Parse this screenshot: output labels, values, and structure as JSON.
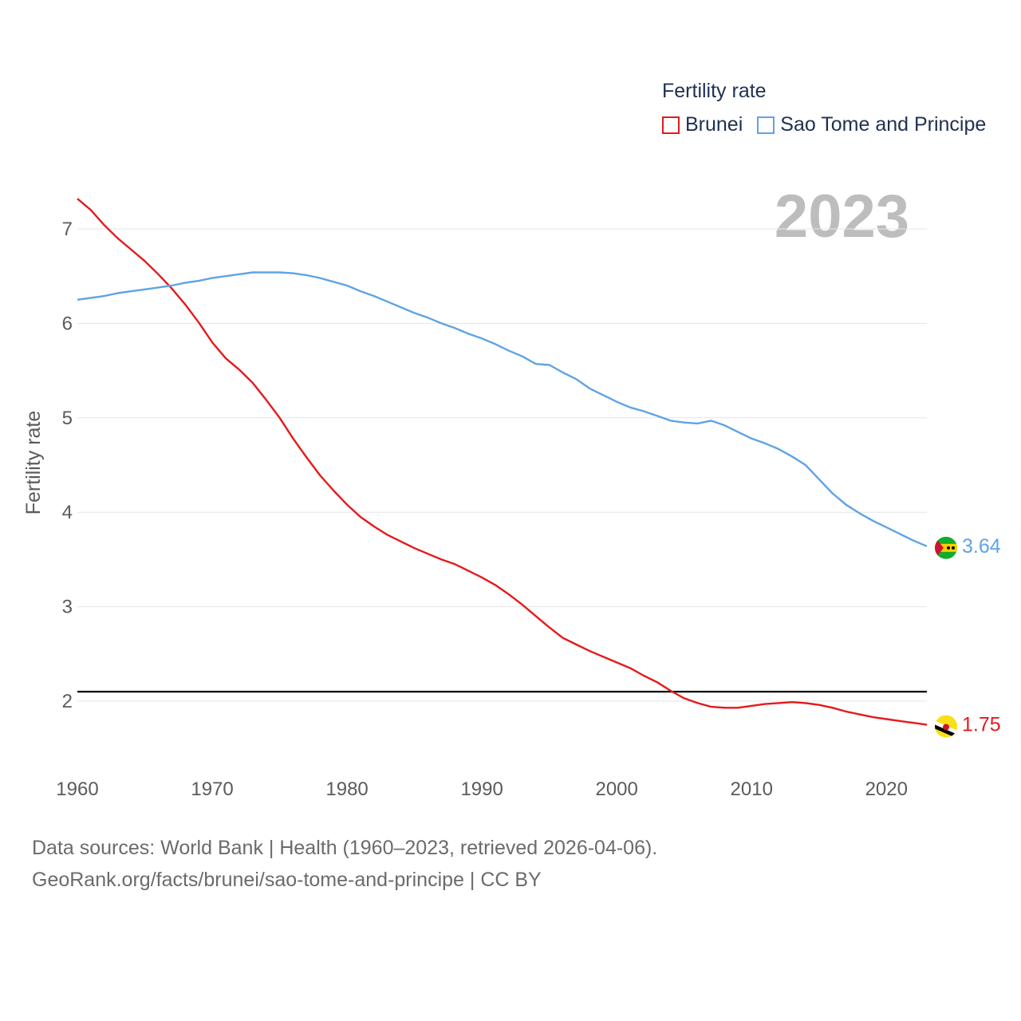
{
  "legend": {
    "title": "Fertility rate",
    "items": [
      {
        "label": "Brunei",
        "color": "#e41a1c"
      },
      {
        "label": "Sao Tome and Principe",
        "color": "#5fa3e6"
      }
    ]
  },
  "year_label": "2023",
  "source": {
    "line1": "Data sources: World Bank | Health (1960–2023, retrieved 2026-04-06).",
    "line2": "GeoRank.org/facts/brunei/sao-tome-and-principe | CC BY"
  },
  "chart_data": {
    "type": "line",
    "title": "Fertility rate",
    "xlabel": "",
    "ylabel": "Fertility rate",
    "xlim": [
      1960,
      2023
    ],
    "ylim": [
      1.3,
      7.35
    ],
    "xticks": [
      1960,
      1970,
      1980,
      1990,
      2000,
      2010,
      2020
    ],
    "yticks": [
      2,
      3,
      4,
      5,
      6,
      7
    ],
    "reference_line": 2.1,
    "grid": true,
    "x": [
      1960,
      1961,
      1962,
      1963,
      1964,
      1965,
      1966,
      1967,
      1968,
      1969,
      1970,
      1971,
      1972,
      1973,
      1974,
      1975,
      1976,
      1977,
      1978,
      1979,
      1980,
      1981,
      1982,
      1983,
      1984,
      1985,
      1986,
      1987,
      1988,
      1989,
      1990,
      1991,
      1992,
      1993,
      1994,
      1995,
      1996,
      1997,
      1998,
      1999,
      2000,
      2001,
      2002,
      2003,
      2004,
      2005,
      2006,
      2007,
      2008,
      2009,
      2010,
      2011,
      2012,
      2013,
      2014,
      2015,
      2016,
      2017,
      2018,
      2019,
      2020,
      2021,
      2022,
      2023
    ],
    "series": [
      {
        "name": "Brunei",
        "color": "#e41a1c",
        "end_label": "1.75",
        "flag": "brunei-flag",
        "values": [
          7.32,
          7.2,
          7.04,
          6.9,
          6.78,
          6.66,
          6.52,
          6.37,
          6.2,
          6.01,
          5.8,
          5.63,
          5.51,
          5.37,
          5.19,
          5.0,
          4.78,
          4.58,
          4.39,
          4.23,
          4.08,
          3.95,
          3.85,
          3.76,
          3.69,
          3.62,
          3.56,
          3.5,
          3.45,
          3.38,
          3.31,
          3.23,
          3.13,
          3.02,
          2.9,
          2.78,
          2.67,
          2.6,
          2.53,
          2.47,
          2.41,
          2.35,
          2.27,
          2.2,
          2.11,
          2.03,
          1.98,
          1.94,
          1.93,
          1.93,
          1.95,
          1.97,
          1.98,
          1.99,
          1.98,
          1.96,
          1.93,
          1.89,
          1.86,
          1.83,
          1.81,
          1.79,
          1.77,
          1.75
        ]
      },
      {
        "name": "Sao Tome and Principe",
        "color": "#5fa3e6",
        "end_label": "3.64",
        "flag": "sao-tome-flag",
        "values": [
          6.25,
          6.27,
          6.29,
          6.32,
          6.34,
          6.36,
          6.38,
          6.4,
          6.43,
          6.45,
          6.48,
          6.5,
          6.52,
          6.54,
          6.54,
          6.54,
          6.53,
          6.51,
          6.48,
          6.44,
          6.4,
          6.34,
          6.29,
          6.23,
          6.17,
          6.11,
          6.06,
          6.0,
          5.95,
          5.89,
          5.84,
          5.78,
          5.71,
          5.65,
          5.57,
          5.56,
          5.48,
          5.41,
          5.31,
          5.24,
          5.17,
          5.11,
          5.07,
          5.02,
          4.97,
          4.95,
          4.94,
          4.97,
          4.92,
          4.85,
          4.78,
          4.73,
          4.67,
          4.59,
          4.5,
          4.35,
          4.2,
          4.08,
          3.99,
          3.91,
          3.84,
          3.77,
          3.7,
          3.64
        ]
      }
    ]
  }
}
